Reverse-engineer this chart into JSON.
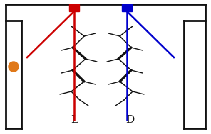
{
  "bg_color": "#ffffff",
  "frame_color": "#111111",
  "frame_lw": 2.0,
  "red_color": "#cc0000",
  "blue_color": "#0000cc",
  "orange_color": "#e07818",
  "label_L": "L",
  "label_D": "D",
  "label_fontsize": 11,
  "mol_color": "#111111",
  "mol_lw": 1.1,
  "mol_thick_lw": 2.4
}
